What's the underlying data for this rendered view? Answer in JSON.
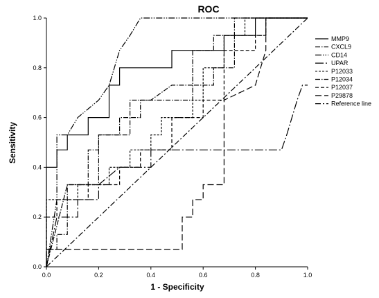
{
  "chart_data": {
    "type": "line",
    "title": "ROC",
    "xlabel": "1 - Specificity",
    "ylabel": "Sensitivity",
    "xlim": [
      0,
      1
    ],
    "ylim": [
      0,
      1
    ],
    "x_ticks": [
      "0.0",
      "0.2",
      "0.4",
      "0.6",
      "0.8",
      "1.0"
    ],
    "y_ticks": [
      "0.0",
      "0.2",
      "0.4",
      "0.6",
      "0.8",
      "1.0"
    ],
    "grid": false,
    "legend_position": "right",
    "series": [
      {
        "name": "MMP9",
        "dash": "solid",
        "points": [
          [
            0,
            0
          ],
          [
            0,
            0.4
          ],
          [
            0.04,
            0.4
          ],
          [
            0.04,
            0.47
          ],
          [
            0.08,
            0.47
          ],
          [
            0.08,
            0.53
          ],
          [
            0.16,
            0.53
          ],
          [
            0.16,
            0.6
          ],
          [
            0.24,
            0.6
          ],
          [
            0.24,
            0.73
          ],
          [
            0.28,
            0.73
          ],
          [
            0.28,
            0.8
          ],
          [
            0.48,
            0.8
          ],
          [
            0.48,
            0.87
          ],
          [
            0.68,
            0.87
          ],
          [
            0.68,
            0.93
          ],
          [
            0.8,
            0.93
          ],
          [
            0.8,
            1.0
          ],
          [
            1.0,
            1.0
          ]
        ]
      },
      {
        "name": "CXCL9",
        "dash": "dash-dot",
        "points": [
          [
            0,
            0
          ],
          [
            0,
            0.07
          ],
          [
            0.04,
            0.07
          ],
          [
            0.04,
            0.13
          ],
          [
            0.08,
            0.13
          ],
          [
            0.08,
            0.33
          ],
          [
            0.2,
            0.33
          ],
          [
            0.2,
            0.53
          ],
          [
            0.32,
            0.53
          ],
          [
            0.32,
            0.6
          ],
          [
            0.36,
            0.6
          ],
          [
            0.36,
            0.67
          ],
          [
            0.56,
            0.67
          ],
          [
            0.56,
            0.73
          ],
          [
            0.64,
            0.73
          ],
          [
            0.64,
            0.8
          ],
          [
            0.72,
            0.8
          ],
          [
            0.72,
            0.93
          ],
          [
            0.84,
            0.93
          ],
          [
            0.84,
            1.0
          ],
          [
            1.0,
            1.0
          ]
        ]
      },
      {
        "name": "CD14",
        "dash": "dash-dot-dot",
        "points": [
          [
            0,
            0
          ],
          [
            0.04,
            0.27
          ],
          [
            0.04,
            0.53
          ],
          [
            0.08,
            0.53
          ],
          [
            0.12,
            0.6
          ],
          [
            0.2,
            0.67
          ],
          [
            0.24,
            0.73
          ],
          [
            0.28,
            0.87
          ],
          [
            0.32,
            0.93
          ],
          [
            0.36,
            1.0
          ],
          [
            1.0,
            1.0
          ]
        ]
      },
      {
        "name": "UPAR",
        "dash": "long-dash-dot",
        "points": [
          [
            0,
            0
          ],
          [
            0.04,
            0.2
          ],
          [
            0.12,
            0.2
          ],
          [
            0.12,
            0.27
          ],
          [
            0.2,
            0.27
          ],
          [
            0.2,
            0.33
          ],
          [
            0.28,
            0.4
          ],
          [
            0.4,
            0.4
          ],
          [
            0.4,
            0.47
          ],
          [
            0.6,
            0.47
          ],
          [
            0.88,
            0.47
          ],
          [
            0.9,
            0.47
          ],
          [
            0.92,
            0.53
          ],
          [
            0.96,
            0.67
          ],
          [
            0.98,
            0.73
          ],
          [
            1.0,
            0.73
          ]
        ]
      },
      {
        "name": "P12033",
        "dash": "short-dash",
        "points": [
          [
            0,
            0
          ],
          [
            0,
            0.27
          ],
          [
            0.12,
            0.27
          ],
          [
            0.12,
            0.33
          ],
          [
            0.24,
            0.33
          ],
          [
            0.24,
            0.4
          ],
          [
            0.32,
            0.4
          ],
          [
            0.32,
            0.47
          ],
          [
            0.4,
            0.47
          ],
          [
            0.4,
            0.53
          ],
          [
            0.44,
            0.53
          ],
          [
            0.44,
            0.6
          ],
          [
            0.56,
            0.6
          ],
          [
            0.56,
            0.67
          ],
          [
            0.6,
            0.67
          ],
          [
            0.6,
            0.8
          ],
          [
            0.68,
            0.8
          ],
          [
            0.68,
            0.93
          ],
          [
            0.76,
            0.93
          ],
          [
            0.76,
            1.0
          ],
          [
            1.0,
            1.0
          ]
        ]
      },
      {
        "name": "P12034",
        "dash": "dash-dot",
        "points": [
          [
            0,
            0
          ],
          [
            0.08,
            0.33
          ],
          [
            0.16,
            0.33
          ],
          [
            0.16,
            0.47
          ],
          [
            0.2,
            0.47
          ],
          [
            0.2,
            0.53
          ],
          [
            0.28,
            0.53
          ],
          [
            0.28,
            0.6
          ],
          [
            0.32,
            0.6
          ],
          [
            0.32,
            0.67
          ],
          [
            0.4,
            0.67
          ],
          [
            0.48,
            0.73
          ],
          [
            0.56,
            0.73
          ],
          [
            0.56,
            0.87
          ],
          [
            0.64,
            0.87
          ],
          [
            0.64,
            0.93
          ],
          [
            0.72,
            0.93
          ],
          [
            0.72,
            1.0
          ],
          [
            1.0,
            1.0
          ]
        ]
      },
      {
        "name": "P12037",
        "dash": "medium-dash",
        "points": [
          [
            0,
            0
          ],
          [
            0,
            0.2
          ],
          [
            0.04,
            0.2
          ],
          [
            0.04,
            0.27
          ],
          [
            0.16,
            0.27
          ],
          [
            0.16,
            0.33
          ],
          [
            0.28,
            0.33
          ],
          [
            0.28,
            0.4
          ],
          [
            0.36,
            0.4
          ],
          [
            0.36,
            0.47
          ],
          [
            0.48,
            0.47
          ],
          [
            0.48,
            0.6
          ],
          [
            0.6,
            0.6
          ],
          [
            0.6,
            0.67
          ],
          [
            0.68,
            0.67
          ],
          [
            0.68,
            0.87
          ],
          [
            0.8,
            0.87
          ],
          [
            0.8,
            0.93
          ],
          [
            0.84,
            0.93
          ],
          [
            0.84,
            1.0
          ],
          [
            1.0,
            1.0
          ]
        ]
      },
      {
        "name": "P29878",
        "dash": "long-dash",
        "points": [
          [
            0,
            0
          ],
          [
            0,
            0.07
          ],
          [
            0.52,
            0.07
          ],
          [
            0.52,
            0.2
          ],
          [
            0.56,
            0.2
          ],
          [
            0.56,
            0.27
          ],
          [
            0.6,
            0.27
          ],
          [
            0.6,
            0.33
          ],
          [
            0.64,
            0.33
          ],
          [
            0.68,
            0.33
          ],
          [
            0.68,
            0.67
          ],
          [
            0.8,
            0.73
          ],
          [
            0.84,
            0.87
          ],
          [
            0.84,
            1.0
          ],
          [
            1.0,
            1.0
          ]
        ]
      },
      {
        "name": "Reference line",
        "dash": "reference",
        "points": [
          [
            0,
            0
          ],
          [
            1,
            1
          ]
        ]
      }
    ]
  }
}
